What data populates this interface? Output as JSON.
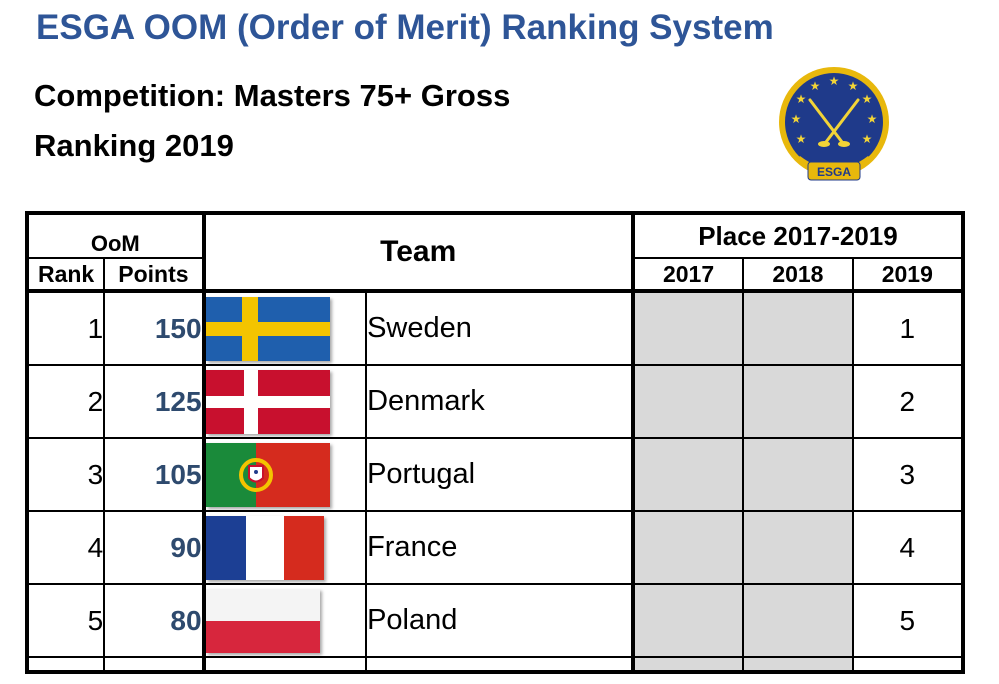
{
  "header": {
    "title": "ESGA OOM (Order of Merit) Ranking System",
    "competition": "Competition: Masters 75+ Gross",
    "ranking": "Ranking 2019"
  },
  "logo": {
    "icon": "esga-emblem-icon",
    "text": "ESGA"
  },
  "table": {
    "oom_label": "OoM",
    "rank_label": "Rank",
    "points_label": "Points",
    "team_label": "Team",
    "place_label": "Place 2017-2019",
    "years": [
      "2017",
      "2018",
      "2019"
    ],
    "rows": [
      {
        "rank": "1",
        "points": "150",
        "flag": "sweden-flag-icon",
        "team": "Sweden",
        "place_2017": "",
        "place_2018": "",
        "place_2019": "1"
      },
      {
        "rank": "2",
        "points": "125",
        "flag": "denmark-flag-icon",
        "team": "Denmark",
        "place_2017": "",
        "place_2018": "",
        "place_2019": "2"
      },
      {
        "rank": "3",
        "points": "105",
        "flag": "portugal-flag-icon",
        "team": "Portugal",
        "place_2017": "",
        "place_2018": "",
        "place_2019": "3"
      },
      {
        "rank": "4",
        "points": "90",
        "flag": "france-flag-icon",
        "team": "France",
        "place_2017": "",
        "place_2018": "",
        "place_2019": "4"
      },
      {
        "rank": "5",
        "points": "80",
        "flag": "poland-flag-icon",
        "team": "Poland",
        "place_2017": "",
        "place_2018": "",
        "place_2019": "5"
      }
    ]
  },
  "colors": {
    "title": "#2e5597",
    "points": "#2e4a6e",
    "empty_cell": "#d9d9d9",
    "logo_blue": "#1f3a8a",
    "logo_gold": "#e8b80c"
  }
}
